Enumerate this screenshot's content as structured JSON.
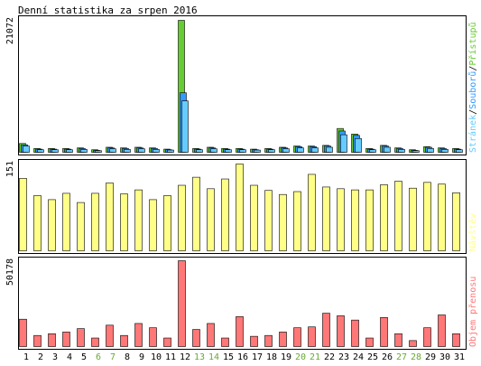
{
  "title": "Denní statistika za srpen 2016",
  "colors": {
    "hits": "#66cc33",
    "files": "#3399ff",
    "pages": "#66ccff",
    "visits": "#ffff88",
    "kbytes": "#ff7777",
    "weekday_text": "#000000",
    "weekend_text": "#66aa33",
    "frame": "#000000"
  },
  "chart_data": [
    {
      "type": "bar",
      "panel": "hits",
      "max_label": "21072",
      "ylim": [
        0,
        21072
      ],
      "legend": [
        {
          "label": "Stránek",
          "color": "#66ccff"
        },
        {
          "label": "Souborů",
          "color": "#3399ff"
        },
        {
          "label": "Přístupů",
          "color": "#66cc33"
        }
      ],
      "categories": [
        "1",
        "2",
        "3",
        "4",
        "5",
        "6",
        "7",
        "8",
        "9",
        "10",
        "11",
        "12",
        "13",
        "14",
        "15",
        "16",
        "17",
        "18",
        "19",
        "20",
        "21",
        "22",
        "23",
        "24",
        "25",
        "26",
        "27",
        "28",
        "29",
        "30",
        "31"
      ],
      "weekend": [
        "6",
        "7",
        "13",
        "14",
        "20",
        "21",
        "27",
        "28"
      ],
      "series": [
        {
          "name": "Přístupů",
          "values": [
            1400,
            600,
            600,
            600,
            700,
            400,
            800,
            700,
            800,
            700,
            500,
            21072,
            600,
            800,
            600,
            600,
            500,
            600,
            800,
            1000,
            1000,
            1100,
            3800,
            2900,
            600,
            1100,
            700,
            400,
            900,
            700,
            600
          ]
        },
        {
          "name": "Souborů",
          "values": [
            1200,
            500,
            500,
            500,
            600,
            300,
            700,
            600,
            700,
            600,
            400,
            9500,
            500,
            700,
            500,
            500,
            400,
            500,
            700,
            900,
            900,
            1000,
            3400,
            2700,
            500,
            1000,
            600,
            300,
            800,
            600,
            500
          ]
        },
        {
          "name": "Stránek",
          "values": [
            1000,
            400,
            400,
            400,
            450,
            250,
            550,
            450,
            550,
            450,
            350,
            8200,
            400,
            550,
            400,
            400,
            350,
            400,
            550,
            700,
            700,
            800,
            2800,
            2200,
            400,
            800,
            450,
            250,
            600,
            450,
            400
          ]
        }
      ]
    },
    {
      "type": "bar",
      "panel": "visits",
      "max_label": "151",
      "ylim": [
        0,
        151
      ],
      "legend": [
        {
          "label": "Návštěv",
          "color": "#ffff88"
        }
      ],
      "categories": [
        "1",
        "2",
        "3",
        "4",
        "5",
        "6",
        "7",
        "8",
        "9",
        "10",
        "11",
        "12",
        "13",
        "14",
        "15",
        "16",
        "17",
        "18",
        "19",
        "20",
        "21",
        "22",
        "23",
        "24",
        "25",
        "26",
        "27",
        "28",
        "29",
        "30",
        "31"
      ],
      "series": [
        {
          "name": "Návštěv",
          "values": [
            126,
            96,
            89,
            100,
            84,
            100,
            118,
            99,
            106,
            89,
            96,
            114,
            128,
            108,
            125,
            151,
            114,
            105,
            98,
            103,
            133,
            111,
            108,
            106,
            106,
            115,
            121,
            109,
            119,
            116,
            101
          ]
        }
      ]
    },
    {
      "type": "bar",
      "panel": "kbytes",
      "max_label": "50178",
      "ylim": [
        0,
        50178
      ],
      "legend": [
        {
          "label": "Objem přenosu",
          "color": "#ff7777"
        }
      ],
      "categories": [
        "1",
        "2",
        "3",
        "4",
        "5",
        "6",
        "7",
        "8",
        "9",
        "10",
        "11",
        "12",
        "13",
        "14",
        "15",
        "16",
        "17",
        "18",
        "19",
        "20",
        "21",
        "22",
        "23",
        "24",
        "25",
        "26",
        "27",
        "28",
        "29",
        "30",
        "31"
      ],
      "series": [
        {
          "name": "Objem přenosu",
          "values": [
            16000,
            6500,
            7500,
            8500,
            10500,
            5000,
            12500,
            6500,
            13500,
            11000,
            5000,
            50178,
            10000,
            13500,
            5000,
            17500,
            6000,
            6500,
            8500,
            11000,
            11500,
            19500,
            18000,
            15500,
            5000,
            17000,
            7500,
            3500,
            11000,
            18500,
            7500
          ]
        }
      ]
    }
  ]
}
